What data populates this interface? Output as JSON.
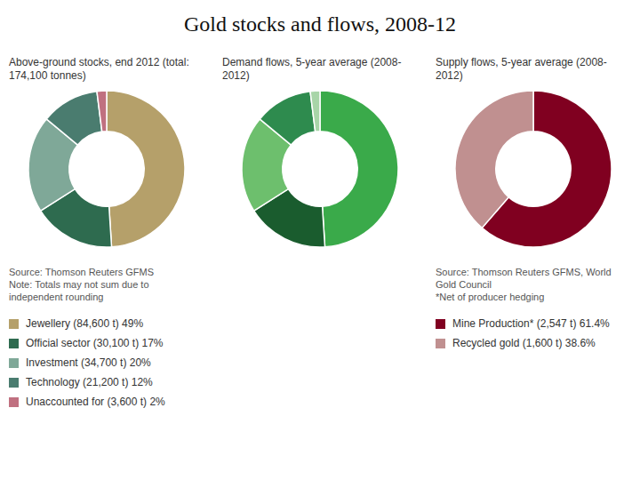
{
  "title": "Gold stocks and flows, 2008-12",
  "chart_data": [
    {
      "type": "donut",
      "title": "Above-ground stocks, end 2012 (total: 174,100 tonnes)",
      "categories": [
        "Jewellery (84,600 t) 49%",
        "Official sector (30,100 t) 17%",
        "Investment (34,700 t) 20%",
        "Technology (21,200 t) 12%",
        "Unaccounted for (3,600 t) 2%"
      ],
      "values": [
        49,
        17,
        20,
        12,
        2
      ],
      "colors": [
        "#b5a06a",
        "#2e6b4f",
        "#7fa898",
        "#4a7c6f",
        "#c07080"
      ],
      "legend": "bottom",
      "annotations": [
        "Source: Thomson Reuters GFMS",
        "Note: Totals may not sum due to independent rounding"
      ]
    },
    {
      "type": "donut",
      "title": "Demand flows, 5-year average (2008-2012)",
      "values": [
        49,
        17,
        20,
        12,
        2
      ],
      "colors": [
        "#3aaa4a",
        "#1a5c2e",
        "#6dbf6d",
        "#2e8b4e",
        "#a8d5a8"
      ]
    },
    {
      "type": "donut",
      "title": "Supply flows, 5-year average (2008-2012)",
      "categories": [
        "Mine Production* (2,547 t) 61.4%",
        "Recycled gold (1,600 t) 38.6%"
      ],
      "values": [
        61.4,
        38.6
      ],
      "colors": [
        "#800020",
        "#c09090"
      ],
      "legend": "bottom",
      "annotations": [
        "Source: Thomson Reuters GFMS, World Gold Council",
        "*Net of producer hedging"
      ]
    }
  ]
}
